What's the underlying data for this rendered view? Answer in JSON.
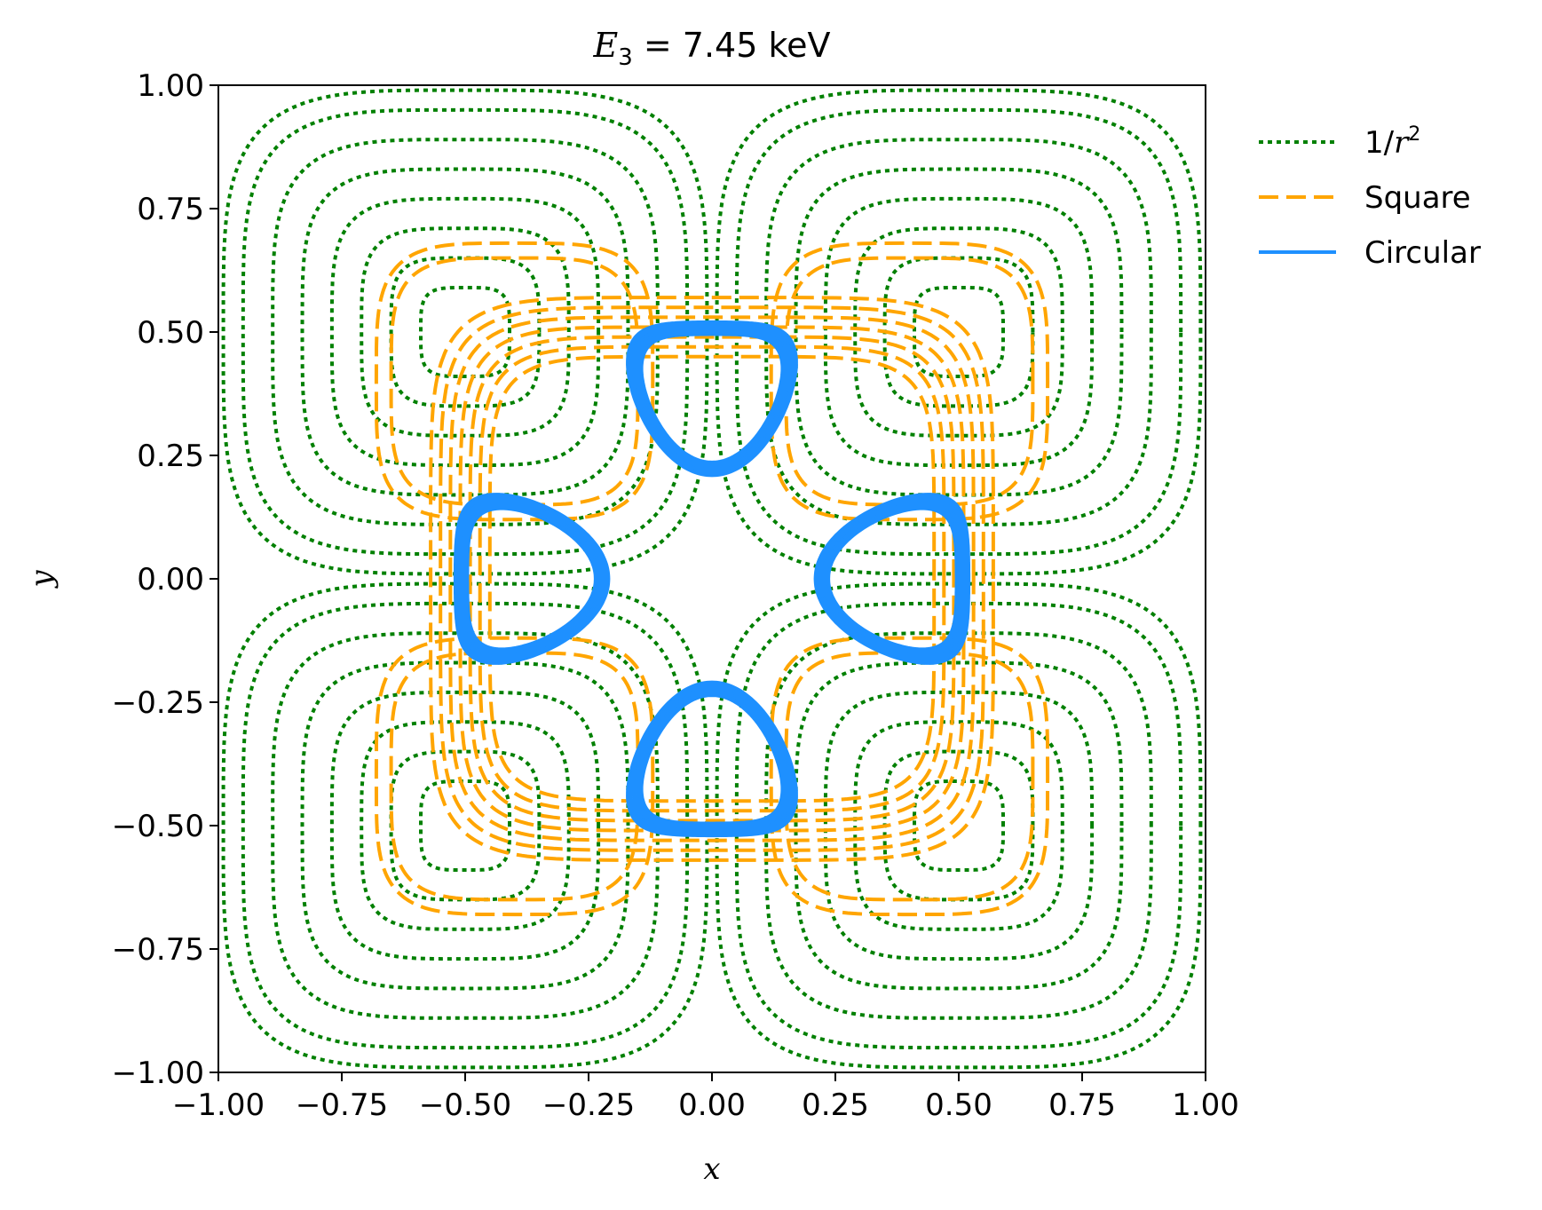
{
  "chart_data": {
    "type": "line",
    "title": {
      "prefix": "E",
      "subscript": "3",
      "rest": " = 7.45 keV"
    },
    "xlabel": "x",
    "ylabel": "y",
    "xlim": [
      -1.0,
      1.0
    ],
    "ylim": [
      -1.0,
      1.0
    ],
    "xticks": [
      "−1.00",
      "−0.75",
      "−0.50",
      "−0.25",
      "0.00",
      "0.25",
      "0.50",
      "0.75",
      "1.00"
    ],
    "yticks": [
      "−1.00",
      "−0.75",
      "−0.50",
      "−0.25",
      "0.00",
      "0.25",
      "0.50",
      "0.75",
      "1.00"
    ],
    "grid": false,
    "legend_position": "outside-top-right",
    "series": [
      {
        "name": "1/r²",
        "legend_label": {
          "base": "1/",
          "italic": "r",
          "sup": "2"
        },
        "style": "dotted",
        "color": "#008000",
        "loops": [
          {
            "cx": -0.5,
            "cy": 0.5,
            "half_widths": [
              0.09,
              0.15,
              0.21,
              0.27,
              0.33,
              0.39,
              0.45,
              0.49
            ],
            "power": 4
          },
          {
            "cx": 0.5,
            "cy": 0.5,
            "half_widths": [
              0.09,
              0.15,
              0.21,
              0.27,
              0.33,
              0.39,
              0.45,
              0.49
            ],
            "power": 4
          },
          {
            "cx": -0.5,
            "cy": -0.5,
            "half_widths": [
              0.09,
              0.15,
              0.21,
              0.27,
              0.33,
              0.39,
              0.45,
              0.49
            ],
            "power": 4
          },
          {
            "cx": 0.5,
            "cy": -0.5,
            "half_widths": [
              0.09,
              0.15,
              0.21,
              0.27,
              0.33,
              0.39,
              0.45,
              0.49
            ],
            "power": 4
          }
        ]
      },
      {
        "name": "Square",
        "style": "dashed",
        "color": "#ffa500",
        "loops": [
          {
            "cx": 0.0,
            "cy": 0.0,
            "half_widths": [
              0.45,
              0.47,
              0.49,
              0.51,
              0.53,
              0.55,
              0.57
            ],
            "power": 6
          },
          {
            "cx": -0.4,
            "cy": 0.4,
            "half_widths": [
              0.25,
              0.28
            ],
            "power": 4
          },
          {
            "cx": 0.4,
            "cy": 0.4,
            "half_widths": [
              0.25,
              0.28
            ],
            "power": 4
          },
          {
            "cx": -0.4,
            "cy": -0.4,
            "half_widths": [
              0.25,
              0.28
            ],
            "power": 4
          },
          {
            "cx": 0.4,
            "cy": -0.4,
            "half_widths": [
              0.25,
              0.28
            ],
            "power": 4
          }
        ]
      },
      {
        "name": "Circular",
        "style": "solid",
        "color": "#1e90ff",
        "lobes": [
          {
            "cx": 0.0,
            "cy": 0.37,
            "orientation": "down",
            "scales": [
              0.86,
              0.88,
              0.9,
              0.92,
              0.94,
              0.96,
              0.98,
              1.0,
              1.02,
              1.04
            ]
          },
          {
            "cx": 0.0,
            "cy": -0.37,
            "orientation": "up",
            "scales": [
              0.86,
              0.88,
              0.9,
              0.92,
              0.94,
              0.96,
              0.98,
              1.0,
              1.02,
              1.04
            ]
          },
          {
            "cx": -0.37,
            "cy": 0.0,
            "orientation": "right",
            "scales": [
              0.86,
              0.88,
              0.9,
              0.92,
              0.94,
              0.96,
              0.98,
              1.0,
              1.02,
              1.04
            ]
          },
          {
            "cx": 0.37,
            "cy": 0.0,
            "orientation": "left",
            "scales": [
              0.86,
              0.88,
              0.9,
              0.92,
              0.94,
              0.96,
              0.98,
              1.0,
              1.02,
              1.04
            ]
          }
        ]
      }
    ]
  }
}
